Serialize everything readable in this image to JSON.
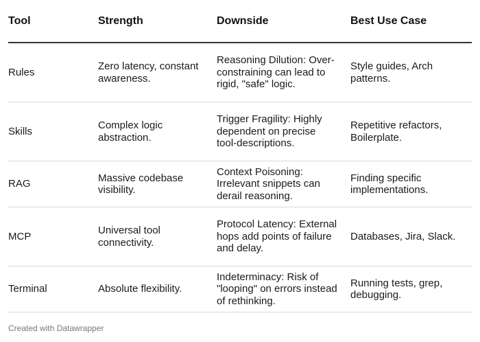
{
  "table": {
    "headers": [
      "Tool",
      "Strength",
      "Downside",
      "Best Use Case"
    ],
    "rows": [
      {
        "tool": "Rules",
        "strength": "Zero latency, constant awareness.",
        "downside": "Reasoning Dilution: Over-constraining can lead to rigid, \"safe\" logic.",
        "use_case": "Style guides, Arch patterns."
      },
      {
        "tool": "Skills",
        "strength": "Complex logic abstraction.",
        "downside": "Trigger Fragility: Highly dependent on precise tool-descriptions.",
        "use_case": "Repetitive refactors, Boilerplate."
      },
      {
        "tool": "RAG",
        "strength": "Massive codebase visibility.",
        "downside": "Context Poisoning: Irrelevant snippets can derail reasoning.",
        "use_case": "Finding specific implementations."
      },
      {
        "tool": "MCP",
        "strength": "Universal tool connectivity.",
        "downside": "Protocol Latency: External hops add points of failure and delay.",
        "use_case": "Databases, Jira, Slack."
      },
      {
        "tool": "Terminal",
        "strength": "Absolute flexibility.",
        "downside": "Indeterminacy: Risk of \"looping\" on errors instead of rethinking.",
        "use_case": "Running tests, grep, debugging."
      }
    ]
  },
  "footer": {
    "credit": "Created with Datawrapper"
  }
}
